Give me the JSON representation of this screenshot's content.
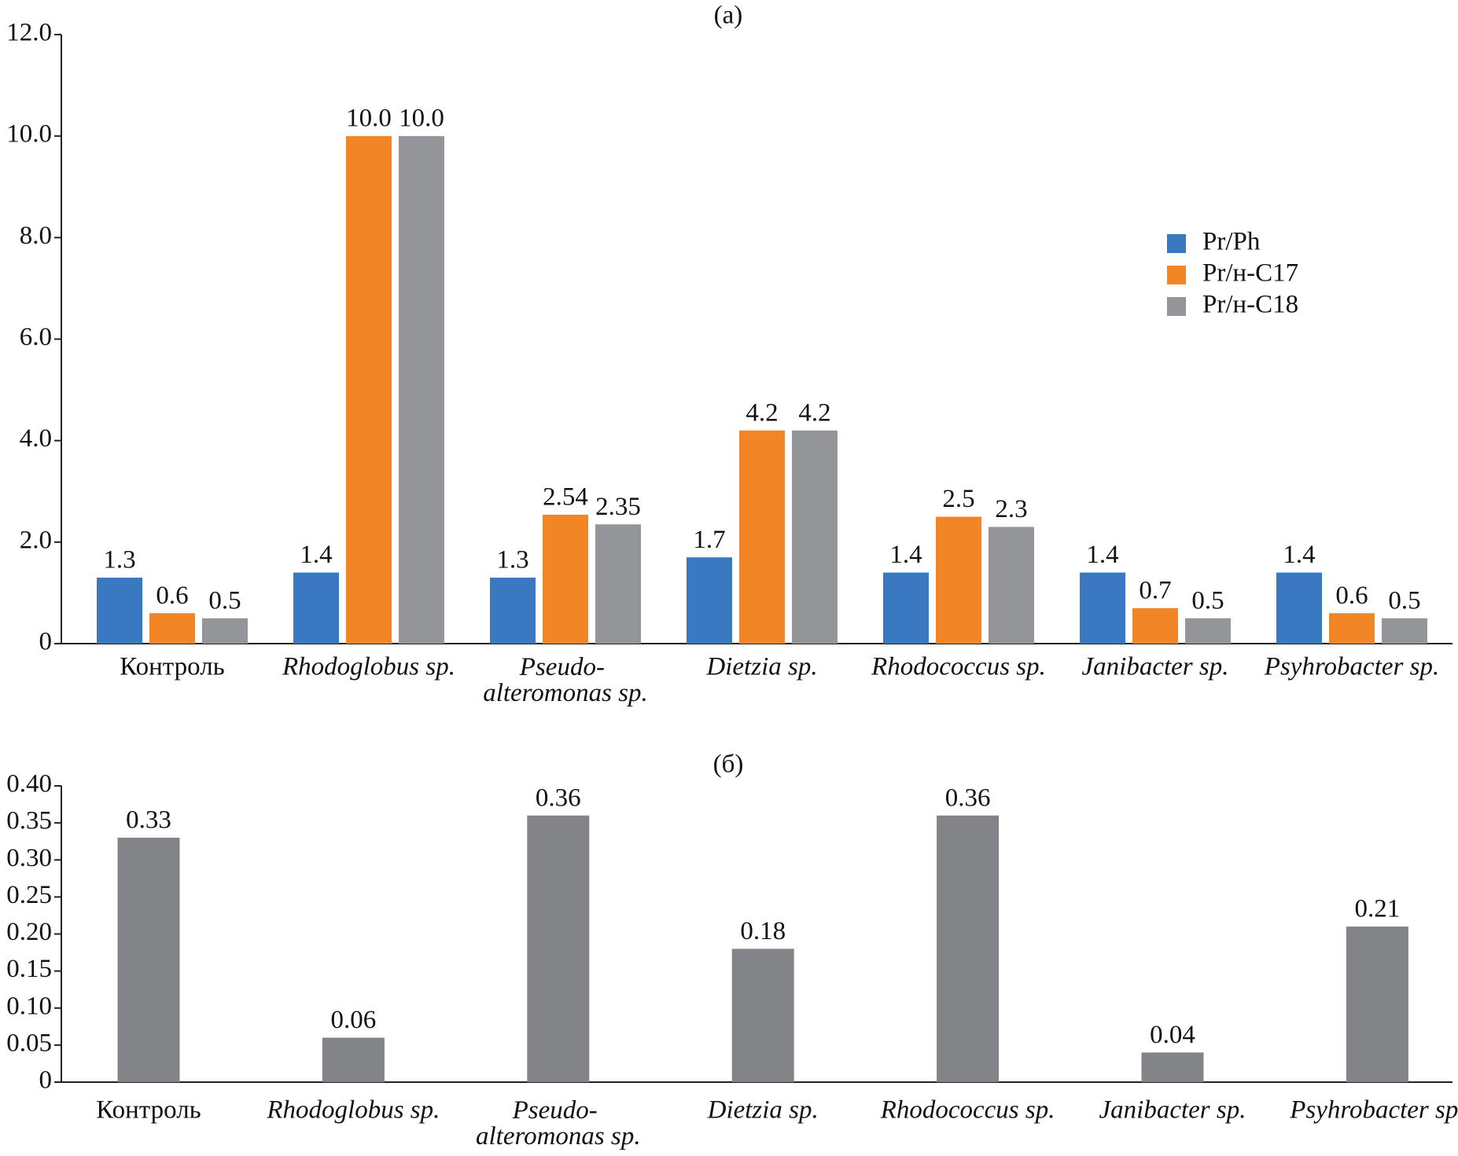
{
  "chart_data": [
    {
      "type": "bar",
      "title": "(a)",
      "categories": [
        "Контроль",
        "Rhodoglobus sp.",
        "Pseudo-\nalteromonas sp.",
        "Dietzia sp.",
        "Rhodococcus sp.",
        "Janibacter sp.",
        "Psyhrobacter sp."
      ],
      "category_style": [
        "normal",
        "italic",
        "italic",
        "italic",
        "italic",
        "italic",
        "italic"
      ],
      "series": [
        {
          "name": "Pr/Ph",
          "color": "#3a78c2",
          "values": [
            1.3,
            1.4,
            1.3,
            1.7,
            1.4,
            1.4,
            1.4
          ]
        },
        {
          "name": "Pr/н-C17",
          "color": "#f28526",
          "values": [
            0.6,
            10.0,
            2.54,
            4.2,
            2.5,
            0.7,
            0.6
          ],
          "value_labels": [
            "0.6",
            "10.0",
            "2.54",
            "4.2",
            "2.5",
            "0.7",
            "0.6"
          ]
        },
        {
          "name": "Pr/н-C18",
          "color": "#939598",
          "values": [
            0.5,
            10.0,
            2.35,
            4.2,
            2.3,
            0.5,
            0.5
          ],
          "value_labels": [
            "0.5",
            "10.0",
            "2.35",
            "4.2",
            "2.3",
            "0.5",
            "0.5"
          ]
        }
      ],
      "ylim": [
        0,
        12
      ],
      "yticks": [
        0,
        {
          "value": 2,
          "label": "2.0"
        },
        {
          "value": 4,
          "label": "4.0"
        },
        {
          "value": 6,
          "label": "6.0"
        },
        {
          "value": 8,
          "label": "8.0"
        },
        {
          "value": 10,
          "label": "10.0"
        },
        {
          "value": 12,
          "label": "12.0"
        }
      ],
      "grid": false,
      "legend": "right"
    },
    {
      "type": "bar",
      "title": "(б)",
      "categories": [
        "Контроль",
        "Rhodoglobus sp.",
        "Pseudo-\nalteromonas sp.",
        "Dietzia sp.",
        "Rhodococcus sp.",
        "Janibacter sp.",
        "Psyhrobacter sp."
      ],
      "category_style": [
        "normal",
        "italic",
        "italic",
        "italic",
        "italic",
        "italic",
        "italic"
      ],
      "values": [
        0.33,
        0.06,
        0.36,
        0.18,
        0.36,
        0.04,
        0.21
      ],
      "color": "#838487",
      "ylim": [
        0,
        0.4
      ],
      "yticks": [
        0,
        0.05,
        {
          "value": 0.1,
          "label": "0.10"
        },
        0.15,
        {
          "value": 0.2,
          "label": "0.20"
        },
        0.25,
        {
          "value": 0.3,
          "label": "0.30"
        },
        0.35,
        {
          "value": 0.4,
          "label": "0.40"
        }
      ],
      "grid": false
    }
  ]
}
